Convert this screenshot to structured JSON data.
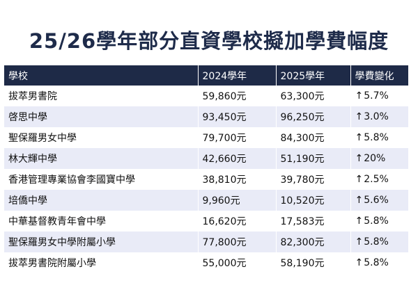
{
  "title": "25/26學年部分直資學校擬加學費幅度",
  "table": {
    "headers": [
      "學校",
      "2024學年",
      "2025學年",
      "學費變化"
    ],
    "rows": [
      {
        "school": "拔萃男書院",
        "y2024": "59,860元",
        "y2025": "63,300元",
        "change": "5.7%"
      },
      {
        "school": "啓思中學",
        "y2024": "93,450元",
        "y2025": "96,250元",
        "change": "3.0%"
      },
      {
        "school": "聖保羅男女中學",
        "y2024": "79,700元",
        "y2025": "84,300元",
        "change": "5.8%"
      },
      {
        "school": "林大輝中學",
        "y2024": "42,660元",
        "y2025": "51,190元",
        "change": "20%"
      },
      {
        "school": "香港管理專業協會李國寶中學",
        "y2024": "38,810元",
        "y2025": "39,780元",
        "change": "2.5%"
      },
      {
        "school": "培僑中學",
        "y2024": "9,960元",
        "y2025": "10,520元",
        "change": "5.6%"
      },
      {
        "school": "中華基督教青年會中學",
        "y2024": "16,620元",
        "y2025": "17,583元",
        "change": "5.8%"
      },
      {
        "school": "聖保羅男女中學附屬小學",
        "y2024": "77,800元",
        "y2025": "82,300元",
        "change": "5.8%"
      },
      {
        "school": "拔萃男書院附屬小學",
        "y2024": "55,000元",
        "y2025": "58,190元",
        "change": "5.8%"
      }
    ],
    "change_icon": "up-arrow-icon",
    "change_glyph": "↑"
  },
  "colors": {
    "header_bg": "#1e2a47",
    "title": "#1e2b4a",
    "stripe": "#e9ebf7"
  }
}
